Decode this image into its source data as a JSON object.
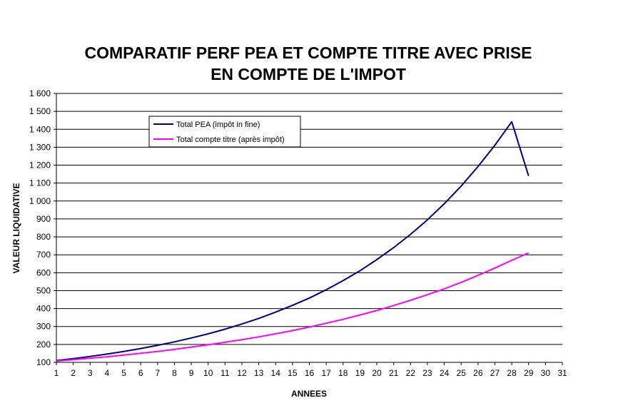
{
  "chart_data": {
    "type": "line",
    "title_line1": "COMPARATIF PERF PEA ET COMPTE TITRE AVEC PRISE",
    "title_line2": "EN COMPTE DE L'IMPOT",
    "xlabel": "ANNEES",
    "ylabel": "VALEUR LIQUIDATIVE",
    "xlim": [
      1,
      31
    ],
    "ylim": [
      100,
      1600
    ],
    "x_ticks": [
      "1",
      "2",
      "3",
      "4",
      "5",
      "6",
      "7",
      "8",
      "9",
      "10",
      "11",
      "12",
      "13",
      "14",
      "15",
      "16",
      "17",
      "18",
      "19",
      "20",
      "21",
      "22",
      "23",
      "24",
      "25",
      "26",
      "27",
      "28",
      "29",
      "30",
      "31"
    ],
    "y_ticks": [
      "100",
      "200",
      "300",
      "400",
      "500",
      "600",
      "700",
      "800",
      "900",
      "1 000",
      "1 100",
      "1 200",
      "1 300",
      "1 400",
      "1 500",
      "1 600"
    ],
    "grid": "horizontal",
    "legend_position": "top-left",
    "series": [
      {
        "name": "Total PEA (impôt in fine)",
        "color": "#000080",
        "x": [
          1,
          2,
          3,
          4,
          5,
          6,
          7,
          8,
          9,
          10,
          11,
          12,
          13,
          14,
          15,
          16,
          17,
          18,
          19,
          20,
          21,
          22,
          23,
          24,
          25,
          26,
          27,
          28,
          29
        ],
        "values": [
          110,
          121,
          133,
          146,
          161,
          177,
          195,
          214,
          236,
          259,
          285,
          314,
          345,
          380,
          418,
          459,
          505,
          556,
          611,
          673,
          740,
          814,
          895,
          985,
          1083,
          1192,
          1311,
          1442,
          1140
        ]
      },
      {
        "name": "Total compte titre (après impôt)",
        "color": "#FF00FF",
        "x": [
          1,
          2,
          3,
          4,
          5,
          6,
          7,
          8,
          9,
          10,
          11,
          12,
          13,
          14,
          15,
          16,
          17,
          18,
          19,
          20,
          21,
          22,
          23,
          24,
          25,
          26,
          27,
          28,
          29
        ],
        "values": [
          107,
          115,
          123,
          131,
          141,
          151,
          161,
          172,
          185,
          198,
          212,
          226,
          242,
          259,
          277,
          297,
          318,
          340,
          364,
          389,
          417,
          446,
          477,
          510,
          546,
          585,
          626,
          669,
          710
        ]
      }
    ]
  }
}
